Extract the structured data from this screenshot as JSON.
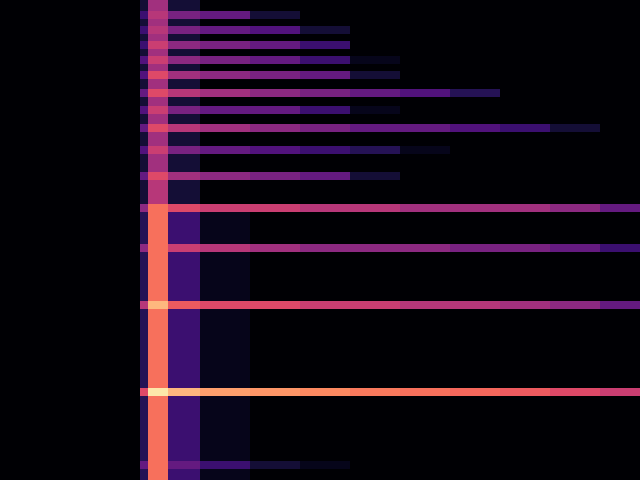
{
  "chart_data": {
    "type": "heatmap",
    "color": "magma",
    "tick_labels": false,
    "xlim": [
      0,
      640
    ],
    "ylim": [
      480,
      0
    ],
    "color_range": [
      0,
      1
    ],
    "x_edges": [
      0,
      140,
      148,
      168,
      200,
      250,
      300,
      350,
      400,
      450,
      500,
      550,
      600,
      640
    ],
    "y_edges": [
      0,
      11,
      19,
      26,
      34,
      41,
      49,
      56,
      64,
      71,
      79,
      89,
      97,
      106,
      114,
      124,
      132,
      146,
      154,
      172,
      180,
      204,
      212,
      244,
      252,
      301,
      309,
      388,
      396,
      461,
      469,
      480
    ],
    "cells": [
      [
        0,
        0.1,
        0.45,
        0.1,
        0,
        0,
        0,
        0,
        0,
        0,
        0,
        0,
        0
      ],
      [
        0,
        0.2,
        0.5,
        0.35,
        0.3,
        0.1,
        0,
        0,
        0,
        0,
        0,
        0,
        0
      ],
      [
        0,
        0.1,
        0.45,
        0.1,
        0,
        0,
        0,
        0,
        0,
        0,
        0,
        0,
        0
      ],
      [
        0,
        0.2,
        0.5,
        0.35,
        0.3,
        0.25,
        0.1,
        0,
        0,
        0,
        0,
        0,
        0
      ],
      [
        0,
        0.1,
        0.45,
        0.1,
        0,
        0,
        0,
        0,
        0,
        0,
        0,
        0,
        0
      ],
      [
        0,
        0.2,
        0.55,
        0.4,
        0.35,
        0.3,
        0.2,
        0,
        0,
        0,
        0,
        0,
        0
      ],
      [
        0,
        0.1,
        0.45,
        0.1,
        0,
        0,
        0,
        0,
        0,
        0,
        0,
        0,
        0
      ],
      [
        0,
        0.25,
        0.55,
        0.4,
        0.35,
        0.3,
        0.2,
        0.05,
        0,
        0,
        0,
        0,
        0
      ],
      [
        0,
        0.1,
        0.45,
        0.1,
        0,
        0,
        0,
        0,
        0,
        0,
        0,
        0,
        0
      ],
      [
        0,
        0.25,
        0.6,
        0.45,
        0.4,
        0.35,
        0.3,
        0.1,
        0,
        0,
        0,
        0,
        0
      ],
      [
        0,
        0.1,
        0.45,
        0.1,
        0,
        0,
        0,
        0,
        0,
        0,
        0,
        0,
        0
      ],
      [
        0,
        0.3,
        0.6,
        0.5,
        0.45,
        0.4,
        0.35,
        0.3,
        0.25,
        0.15,
        0,
        0,
        0
      ],
      [
        0,
        0.1,
        0.45,
        0.1,
        0,
        0,
        0,
        0,
        0,
        0,
        0,
        0,
        0
      ],
      [
        0,
        0.25,
        0.55,
        0.35,
        0.3,
        0.3,
        0.2,
        0.05,
        0,
        0,
        0,
        0,
        0
      ],
      [
        0,
        0.1,
        0.45,
        0.1,
        0,
        0,
        0,
        0,
        0,
        0,
        0,
        0,
        0
      ],
      [
        0,
        0.3,
        0.6,
        0.5,
        0.45,
        0.4,
        0.35,
        0.3,
        0.3,
        0.25,
        0.2,
        0.1,
        0
      ],
      [
        0,
        0.1,
        0.45,
        0.1,
        0,
        0,
        0,
        0,
        0,
        0,
        0,
        0,
        0
      ],
      [
        0,
        0.25,
        0.55,
        0.35,
        0.3,
        0.25,
        0.2,
        0.15,
        0.05,
        0,
        0,
        0,
        0
      ],
      [
        0,
        0.1,
        0.45,
        0.1,
        0,
        0,
        0,
        0,
        0,
        0,
        0,
        0,
        0
      ],
      [
        0,
        0.3,
        0.6,
        0.45,
        0.4,
        0.35,
        0.3,
        0.1,
        0,
        0,
        0,
        0,
        0
      ],
      [
        0,
        0.1,
        0.5,
        0.1,
        0,
        0,
        0,
        0,
        0,
        0,
        0,
        0,
        0
      ],
      [
        0,
        0.4,
        0.7,
        0.6,
        0.55,
        0.55,
        0.5,
        0.5,
        0.45,
        0.45,
        0.45,
        0.4,
        0.3
      ],
      [
        0,
        0.15,
        0.7,
        0.2,
        0.05,
        0,
        0,
        0,
        0,
        0,
        0,
        0,
        0
      ],
      [
        0,
        0.4,
        0.7,
        0.55,
        0.5,
        0.45,
        0.4,
        0.4,
        0.4,
        0.35,
        0.35,
        0.3,
        0.2
      ],
      [
        0,
        0.15,
        0.7,
        0.2,
        0.05,
        0,
        0,
        0,
        0,
        0,
        0,
        0,
        0
      ],
      [
        0,
        0.5,
        0.85,
        0.65,
        0.6,
        0.6,
        0.55,
        0.55,
        0.5,
        0.5,
        0.45,
        0.4,
        0.3
      ],
      [
        0,
        0.15,
        0.7,
        0.2,
        0.05,
        0,
        0,
        0,
        0,
        0,
        0,
        0,
        0
      ],
      [
        0,
        0.6,
        0.95,
        0.85,
        0.8,
        0.78,
        0.75,
        0.72,
        0.7,
        0.68,
        0.65,
        0.6,
        0.55
      ],
      [
        0,
        0.15,
        0.7,
        0.2,
        0.05,
        0,
        0,
        0,
        0,
        0,
        0,
        0,
        0
      ],
      [
        0,
        0.3,
        0.7,
        0.3,
        0.2,
        0.1,
        0.05,
        0,
        0,
        0,
        0,
        0,
        0
      ],
      [
        0,
        0.15,
        0.7,
        0.2,
        0.05,
        0,
        0,
        0,
        0,
        0,
        0,
        0,
        0
      ]
    ]
  }
}
